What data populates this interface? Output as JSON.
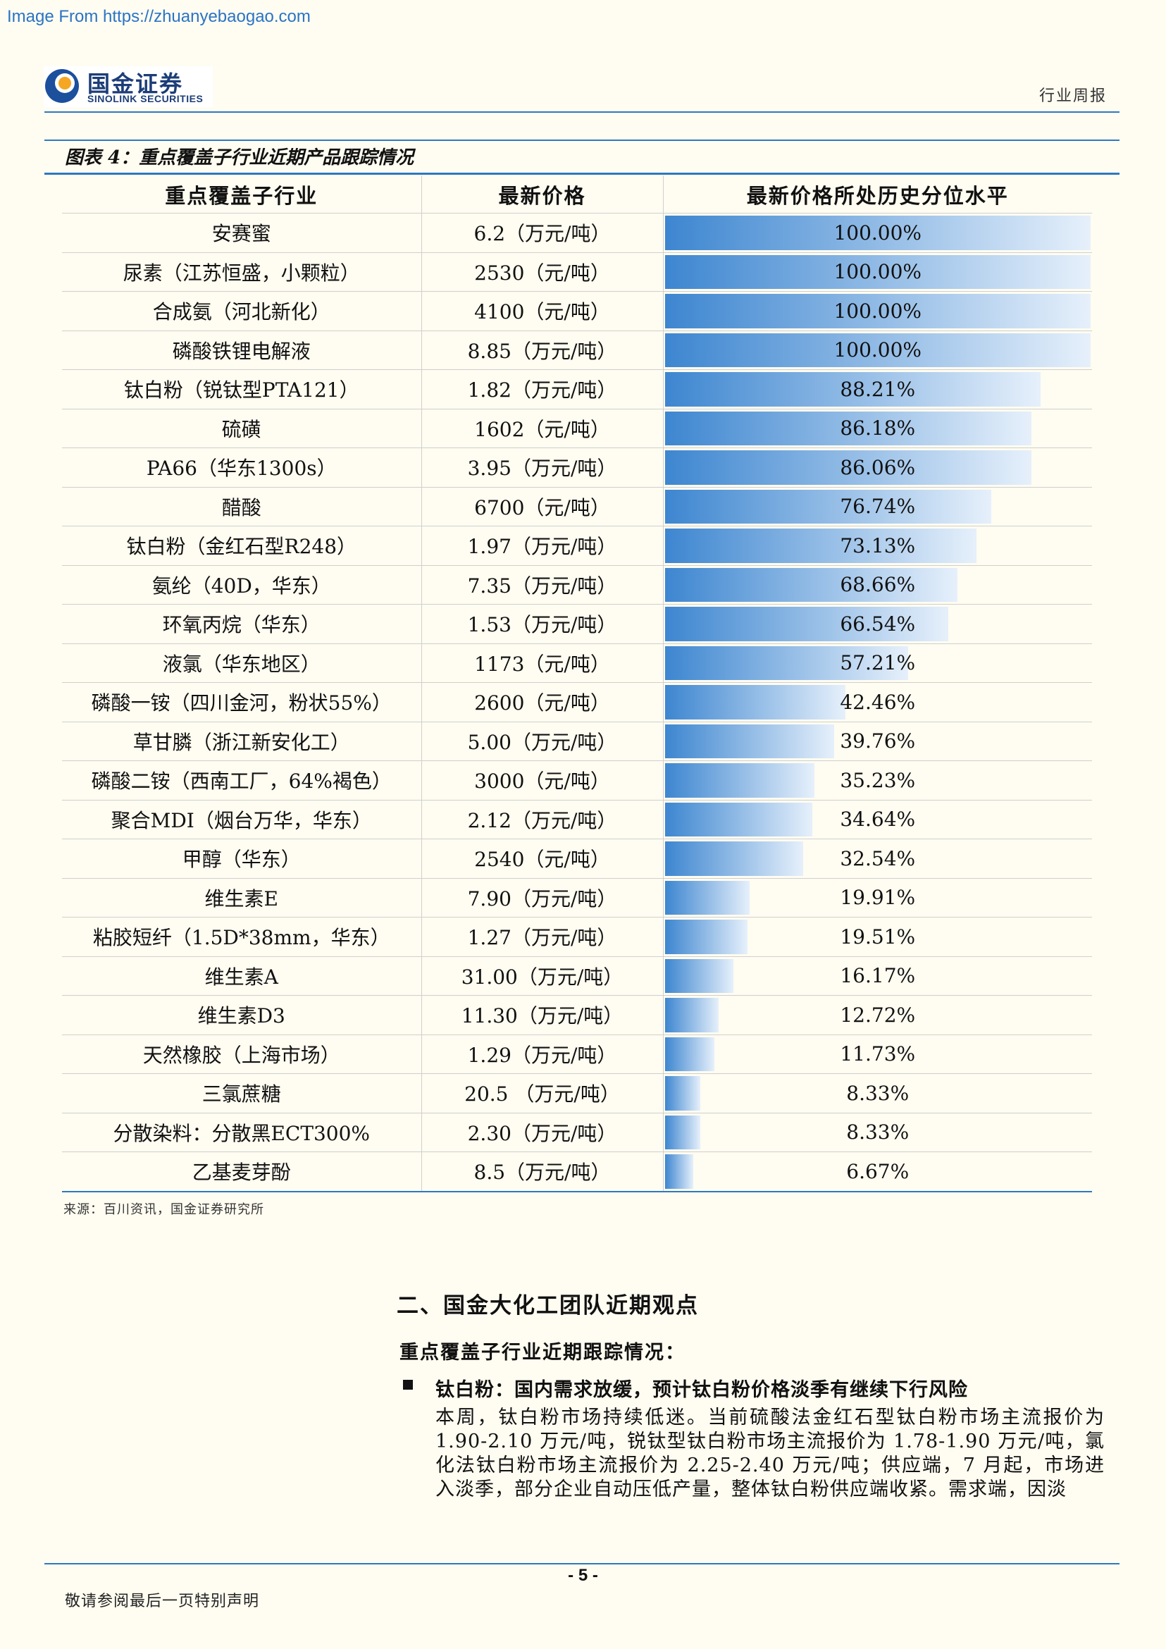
{
  "watermark": "Image From https://zhuanyebaogao.com",
  "header": {
    "logo_cn": "国金证券",
    "logo_en": "SINOLINK SECURITIES",
    "doc_type": "行业周报"
  },
  "figure": {
    "title": "图表 4：重点覆盖子行业近期产品跟踪情况",
    "columns": [
      "重点覆盖子行业",
      "最新价格",
      "最新价格所处历史分位水平"
    ],
    "rows": [
      {
        "name": "安赛蜜",
        "price": "6.2（万元/吨）",
        "pct_label": "100.00%",
        "pct": 100.0
      },
      {
        "name": "尿素（江苏恒盛，小颗粒）",
        "price": "2530（元/吨）",
        "pct_label": "100.00%",
        "pct": 100.0
      },
      {
        "name": "合成氨（河北新化）",
        "price": "4100（元/吨）",
        "pct_label": "100.00%",
        "pct": 100.0
      },
      {
        "name": "磷酸铁锂电解液",
        "price": "8.85（万元/吨）",
        "pct_label": "100.00%",
        "pct": 100.0
      },
      {
        "name": "钛白粉（锐钛型PTA121）",
        "price": "1.82（万元/吨）",
        "pct_label": "88.21%",
        "pct": 88.21
      },
      {
        "name": "硫磺",
        "price": "1602（元/吨）",
        "pct_label": "86.18%",
        "pct": 86.18
      },
      {
        "name": "PA66（华东1300s）",
        "price": "3.95（万元/吨）",
        "pct_label": "86.06%",
        "pct": 86.06
      },
      {
        "name": "醋酸",
        "price": "6700（元/吨）",
        "pct_label": "76.74%",
        "pct": 76.74
      },
      {
        "name": "钛白粉（金红石型R248）",
        "price": "1.97（万元/吨）",
        "pct_label": "73.13%",
        "pct": 73.13
      },
      {
        "name": "氨纶（40D，华东）",
        "price": "7.35（万元/吨）",
        "pct_label": "68.66%",
        "pct": 68.66
      },
      {
        "name": "环氧丙烷（华东）",
        "price": "1.53（万元/吨）",
        "pct_label": "66.54%",
        "pct": 66.54
      },
      {
        "name": "液氯（华东地区）",
        "price": "1173（元/吨）",
        "pct_label": "57.21%",
        "pct": 57.21
      },
      {
        "name": "磷酸一铵（四川金河，粉状55%）",
        "price": "2600（元/吨）",
        "pct_label": "42.46%",
        "pct": 42.46
      },
      {
        "name": "草甘膦（浙江新安化工）",
        "price": "5.00（万元/吨）",
        "pct_label": "39.76%",
        "pct": 39.76
      },
      {
        "name": "磷酸二铵（西南工厂，64%褐色）",
        "price": "3000（元/吨）",
        "pct_label": "35.23%",
        "pct": 35.23
      },
      {
        "name": "聚合MDI（烟台万华，华东）",
        "price": "2.12（万元/吨）",
        "pct_label": "34.64%",
        "pct": 34.64
      },
      {
        "name": "甲醇（华东）",
        "price": "2540（元/吨）",
        "pct_label": "32.54%",
        "pct": 32.54
      },
      {
        "name": "维生素E",
        "price": "7.90（万元/吨）",
        "pct_label": "19.91%",
        "pct": 19.91
      },
      {
        "name": "粘胶短纤（1.5D*38mm，华东）",
        "price": "1.27（万元/吨）",
        "pct_label": "19.51%",
        "pct": 19.51
      },
      {
        "name": "维生素A",
        "price": "31.00（万元/吨）",
        "pct_label": "16.17%",
        "pct": 16.17
      },
      {
        "name": "维生素D3",
        "price": "11.30（万元/吨）",
        "pct_label": "12.72%",
        "pct": 12.72
      },
      {
        "name": "天然橡胶（上海市场）",
        "price": "1.29（万元/吨）",
        "pct_label": "11.73%",
        "pct": 11.73
      },
      {
        "name": "三氯蔗糖",
        "price": "20.5 （万元/吨）",
        "pct_label": "8.33%",
        "pct": 8.33
      },
      {
        "name": "分散染料：分散黑ECT300%",
        "price": "2.30（万元/吨）",
        "pct_label": "8.33%",
        "pct": 8.33
      },
      {
        "name": "乙基麦芽酚",
        "price": "8.5（万元/吨）",
        "pct_label": "6.67%",
        "pct": 6.67
      }
    ],
    "source": "来源：百川资讯，国金证券研究所"
  },
  "section": {
    "heading": "二、国金大化工团队近期观点",
    "subheading": "重点覆盖子行业近期跟踪情况：",
    "bullet_title": "钛白粉：国内需求放缓，预计钛白粉价格淡季有继续下行风险",
    "paragraph": "本周，钛白粉市场持续低迷。当前硫酸法金红石型钛白粉市场主流报价为1.90-2.10 万元/吨，锐钛型钛白粉市场主流报价为 1.78-1.90 万元/吨，氯化法钛白粉市场主流报价为 2.25-2.40 万元/吨；供应端，7 月起，市场进入淡季，部分企业自动压低产量，整体钛白粉供应端收紧。需求端，因淡"
  },
  "footer": {
    "page_number": "- 5 -",
    "disclaimer": "敬请参阅最后一页特别声明"
  },
  "colors": {
    "accent": "#2e78c2",
    "bar_start": "#3d86d0",
    "bar_end": "#e6f0fb",
    "background": "#fffcf1"
  }
}
